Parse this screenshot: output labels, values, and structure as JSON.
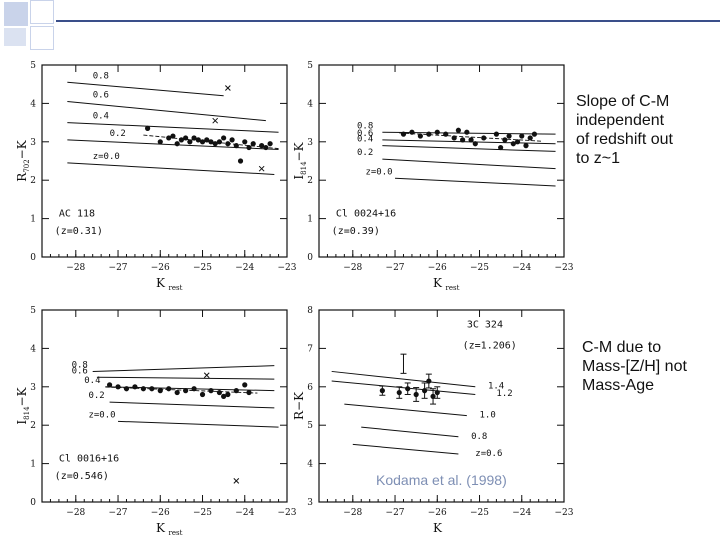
{
  "slide": {
    "note_top": [
      "Slope of C-M",
      "independent",
      "of redshift out",
      "to z~1"
    ],
    "note_bottom": [
      "C-M due to",
      "Mass-[Z/H] not",
      "Mass-Age"
    ],
    "credit": "Kodama et al. (1998)",
    "accent_color": "#3a4f8a",
    "bg_square_color": "#c9d3ea"
  },
  "chart_data": [
    {
      "type": "scatter",
      "panel": "top-left",
      "title": "",
      "cluster": "AC 118",
      "redshift": "(z=0.31)",
      "xlabel": "K",
      "xlabel_sub": "rest",
      "ylabel": "R",
      "ylabel_sub": "702",
      "ylabel_suffix": "−K",
      "xlim": [
        -28.8,
        -23
      ],
      "ylim": [
        0,
        5
      ],
      "xticks": [
        -28,
        -27,
        -26,
        -25,
        -24,
        -23
      ],
      "yticks": [
        0,
        1,
        2,
        3,
        4,
        5
      ],
      "tracks": [
        {
          "label": "0.8",
          "points": [
            [
              -28.2,
              4.55
            ],
            [
              -24.5,
              4.2
            ]
          ],
          "label_x": -27.6
        },
        {
          "label": "0.6",
          "points": [
            [
              -28.2,
              4.05
            ],
            [
              -23.5,
              3.55
            ]
          ],
          "label_x": -27.6
        },
        {
          "label": "0.4",
          "points": [
            [
              -28.2,
              3.5
            ],
            [
              -23.2,
              3.25
            ]
          ],
          "label_x": -27.6
        },
        {
          "label": "0.2",
          "points": [
            [
              -28.2,
              3.05
            ],
            [
              -23.2,
              2.8
            ]
          ],
          "label_x": -27.2
        },
        {
          "label": "z=0.0",
          "points": [
            [
              -28.2,
              2.45
            ],
            [
              -23.3,
              2.15
            ]
          ],
          "label_x": -27.6
        }
      ],
      "galaxies": [
        [
          -26.3,
          3.35
        ],
        [
          -25.8,
          3.1
        ],
        [
          -25.7,
          3.15
        ],
        [
          -25.5,
          3.05
        ],
        [
          -25.4,
          3.1
        ],
        [
          -25.3,
          3.0
        ],
        [
          -25.2,
          3.1
        ],
        [
          -25.1,
          3.05
        ],
        [
          -25.0,
          3.0
        ],
        [
          -24.9,
          3.05
        ],
        [
          -24.8,
          3.0
        ],
        [
          -24.7,
          2.95
        ],
        [
          -24.6,
          3.0
        ],
        [
          -24.5,
          3.1
        ],
        [
          -24.4,
          2.95
        ],
        [
          -24.3,
          3.05
        ],
        [
          -24.2,
          2.9
        ],
        [
          -24.0,
          3.0
        ],
        [
          -23.9,
          2.85
        ],
        [
          -23.8,
          2.95
        ],
        [
          -23.6,
          2.9
        ],
        [
          -23.5,
          2.85
        ],
        [
          -23.4,
          2.95
        ],
        [
          -26.0,
          3.0
        ],
        [
          -25.6,
          2.95
        ],
        [
          -24.1,
          2.5
        ]
      ],
      "outliers": [
        [
          -24.4,
          4.4
        ],
        [
          -24.7,
          3.55
        ],
        [
          -23.6,
          2.3
        ]
      ]
    },
    {
      "type": "scatter",
      "panel": "top-right",
      "cluster": "Cl 0024+16",
      "redshift": "(z=0.39)",
      "xlabel": "K",
      "xlabel_sub": "rest",
      "ylabel": "I",
      "ylabel_sub": "814",
      "ylabel_suffix": "−K",
      "xlim": [
        -28.8,
        -23
      ],
      "ylim": [
        0,
        5
      ],
      "xticks": [
        -28,
        -27,
        -26,
        -25,
        -24,
        -23
      ],
      "yticks": [
        0,
        1,
        2,
        3,
        4,
        5
      ],
      "tracks": [
        {
          "label": "0.8",
          "points": [
            [
              -27.3,
              3.25
            ],
            [
              -23.2,
              3.2
            ]
          ],
          "label_x": -27.9
        },
        {
          "label": "0.6",
          "points": [
            [
              -27.3,
              3.05
            ],
            [
              -23.2,
              2.95
            ]
          ],
          "label_x": -27.9
        },
        {
          "label": "0.4",
          "points": [
            [
              -27.3,
              2.9
            ],
            [
              -23.2,
              2.75
            ]
          ],
          "label_x": -27.9
        },
        {
          "label": "0.2",
          "points": [
            [
              -27.3,
              2.55
            ],
            [
              -23.2,
              2.3
            ]
          ],
          "label_x": -27.9
        },
        {
          "label": "z=0.0",
          "points": [
            [
              -27.0,
              2.05
            ],
            [
              -23.2,
              1.85
            ]
          ],
          "label_x": -27.7
        }
      ],
      "galaxies": [
        [
          -26.8,
          3.2
        ],
        [
          -26.6,
          3.25
        ],
        [
          -26.4,
          3.15
        ],
        [
          -26.2,
          3.2
        ],
        [
          -26.0,
          3.25
        ],
        [
          -25.8,
          3.2
        ],
        [
          -25.6,
          3.1
        ],
        [
          -25.5,
          3.3
        ],
        [
          -25.4,
          3.05
        ],
        [
          -25.3,
          3.25
        ],
        [
          -25.2,
          3.05
        ],
        [
          -25.1,
          2.95
        ],
        [
          -24.9,
          3.1
        ],
        [
          -24.6,
          3.2
        ],
        [
          -24.4,
          3.05
        ],
        [
          -24.3,
          3.15
        ],
        [
          -24.2,
          2.95
        ],
        [
          -24.1,
          3.0
        ],
        [
          -24.0,
          3.15
        ],
        [
          -23.9,
          2.9
        ],
        [
          -23.8,
          3.1
        ],
        [
          -24.5,
          2.85
        ],
        [
          -23.7,
          3.2
        ]
      ],
      "outliers": []
    },
    {
      "type": "scatter",
      "panel": "bottom-left",
      "cluster": "Cl 0016+16",
      "redshift": "(z=0.546)",
      "xlabel": "K",
      "xlabel_sub": "rest",
      "ylabel": "I",
      "ylabel_sub": "814",
      "ylabel_suffix": "−K",
      "xlim": [
        -28.8,
        -23
      ],
      "ylim": [
        0,
        5
      ],
      "xticks": [
        -28,
        -27,
        -26,
        -25,
        -24,
        -23
      ],
      "yticks": [
        0,
        1,
        2,
        3,
        4,
        5
      ],
      "tracks": [
        {
          "label": "0.8",
          "points": [
            [
              -27.6,
              3.4
            ],
            [
              -23.3,
              3.55
            ]
          ],
          "label_x": -28.1
        },
        {
          "label": "0.6",
          "points": [
            [
              -27.5,
              3.25
            ],
            [
              -23.3,
              3.2
            ]
          ],
          "label_x": -28.1
        },
        {
          "label": "0.4",
          "points": [
            [
              -27.3,
              3.0
            ],
            [
              -23.3,
              2.9
            ]
          ],
          "label_x": -27.8
        },
        {
          "label": "0.2",
          "points": [
            [
              -27.2,
              2.6
            ],
            [
              -23.3,
              2.45
            ]
          ],
          "label_x": -27.7
        },
        {
          "label": "z=0.0",
          "points": [
            [
              -27.0,
              2.1
            ],
            [
              -23.2,
              1.95
            ]
          ],
          "label_x": -27.7
        }
      ],
      "galaxies": [
        [
          -27.2,
          3.05
        ],
        [
          -27.0,
          3.0
        ],
        [
          -26.8,
          2.95
        ],
        [
          -26.6,
          3.0
        ],
        [
          -26.4,
          2.95
        ],
        [
          -26.2,
          2.95
        ],
        [
          -26.0,
          2.9
        ],
        [
          -25.8,
          2.95
        ],
        [
          -25.6,
          2.85
        ],
        [
          -25.4,
          2.9
        ],
        [
          -25.2,
          2.95
        ],
        [
          -25.0,
          2.8
        ],
        [
          -24.8,
          2.9
        ],
        [
          -24.6,
          2.85
        ],
        [
          -24.4,
          2.8
        ],
        [
          -24.2,
          2.9
        ],
        [
          -24.0,
          3.05
        ],
        [
          -23.9,
          2.85
        ],
        [
          -24.5,
          2.75
        ]
      ],
      "outliers": [
        [
          -24.9,
          3.3
        ],
        [
          -24.2,
          0.55
        ]
      ]
    },
    {
      "type": "scatter",
      "panel": "bottom-right",
      "cluster": "3C 324",
      "redshift": "(z=1.206)",
      "xlabel": "K",
      "xlabel_sub": "",
      "ylabel": "R",
      "ylabel_sub": "",
      "ylabel_suffix": "−K",
      "xlim": [
        -28.8,
        -23
      ],
      "ylim": [
        3,
        8
      ],
      "xticks": [
        -28,
        -27,
        -26,
        -25,
        -24,
        -23
      ],
      "yticks": [
        3,
        4,
        5,
        6,
        7,
        8
      ],
      "tracks": [
        {
          "label": "1.4",
          "points": [
            [
              -28.5,
              6.4
            ],
            [
              -25.1,
              6.0
            ]
          ],
          "label_x": -24.8
        },
        {
          "label": "1.2",
          "points": [
            [
              -28.5,
              6.15
            ],
            [
              -25.1,
              5.8
            ]
          ],
          "label_x": -24.6
        },
        {
          "label": "1.0",
          "points": [
            [
              -28.2,
              5.55
            ],
            [
              -25.3,
              5.25
            ]
          ],
          "label_x": -25.0
        },
        {
          "label": "0.8",
          "points": [
            [
              -27.8,
              4.95
            ],
            [
              -25.5,
              4.7
            ]
          ],
          "label_x": -25.2
        },
        {
          "label": "z=0.6",
          "points": [
            [
              -28.0,
              4.5
            ],
            [
              -25.5,
              4.25
            ]
          ],
          "label_x": -25.1
        }
      ],
      "galaxies": [
        [
          -27.3,
          5.9
        ],
        [
          -26.9,
          5.85
        ],
        [
          -26.7,
          5.95
        ],
        [
          -26.5,
          5.8
        ],
        [
          -26.3,
          5.9
        ],
        [
          -26.1,
          5.75
        ],
        [
          -26.0,
          5.85
        ],
        [
          -26.2,
          6.15
        ]
      ],
      "errorbars": [
        [
          -27.3,
          5.9,
          0.12
        ],
        [
          -26.9,
          5.85,
          0.15
        ],
        [
          -26.7,
          5.95,
          0.15
        ],
        [
          -26.5,
          5.8,
          0.18
        ],
        [
          -26.3,
          5.9,
          0.2
        ],
        [
          -26.1,
          5.75,
          0.2
        ],
        [
          -26.0,
          5.85,
          0.15
        ],
        [
          -26.2,
          6.15,
          0.18
        ],
        [
          -26.8,
          6.6,
          0.25
        ]
      ],
      "outliers": []
    }
  ]
}
